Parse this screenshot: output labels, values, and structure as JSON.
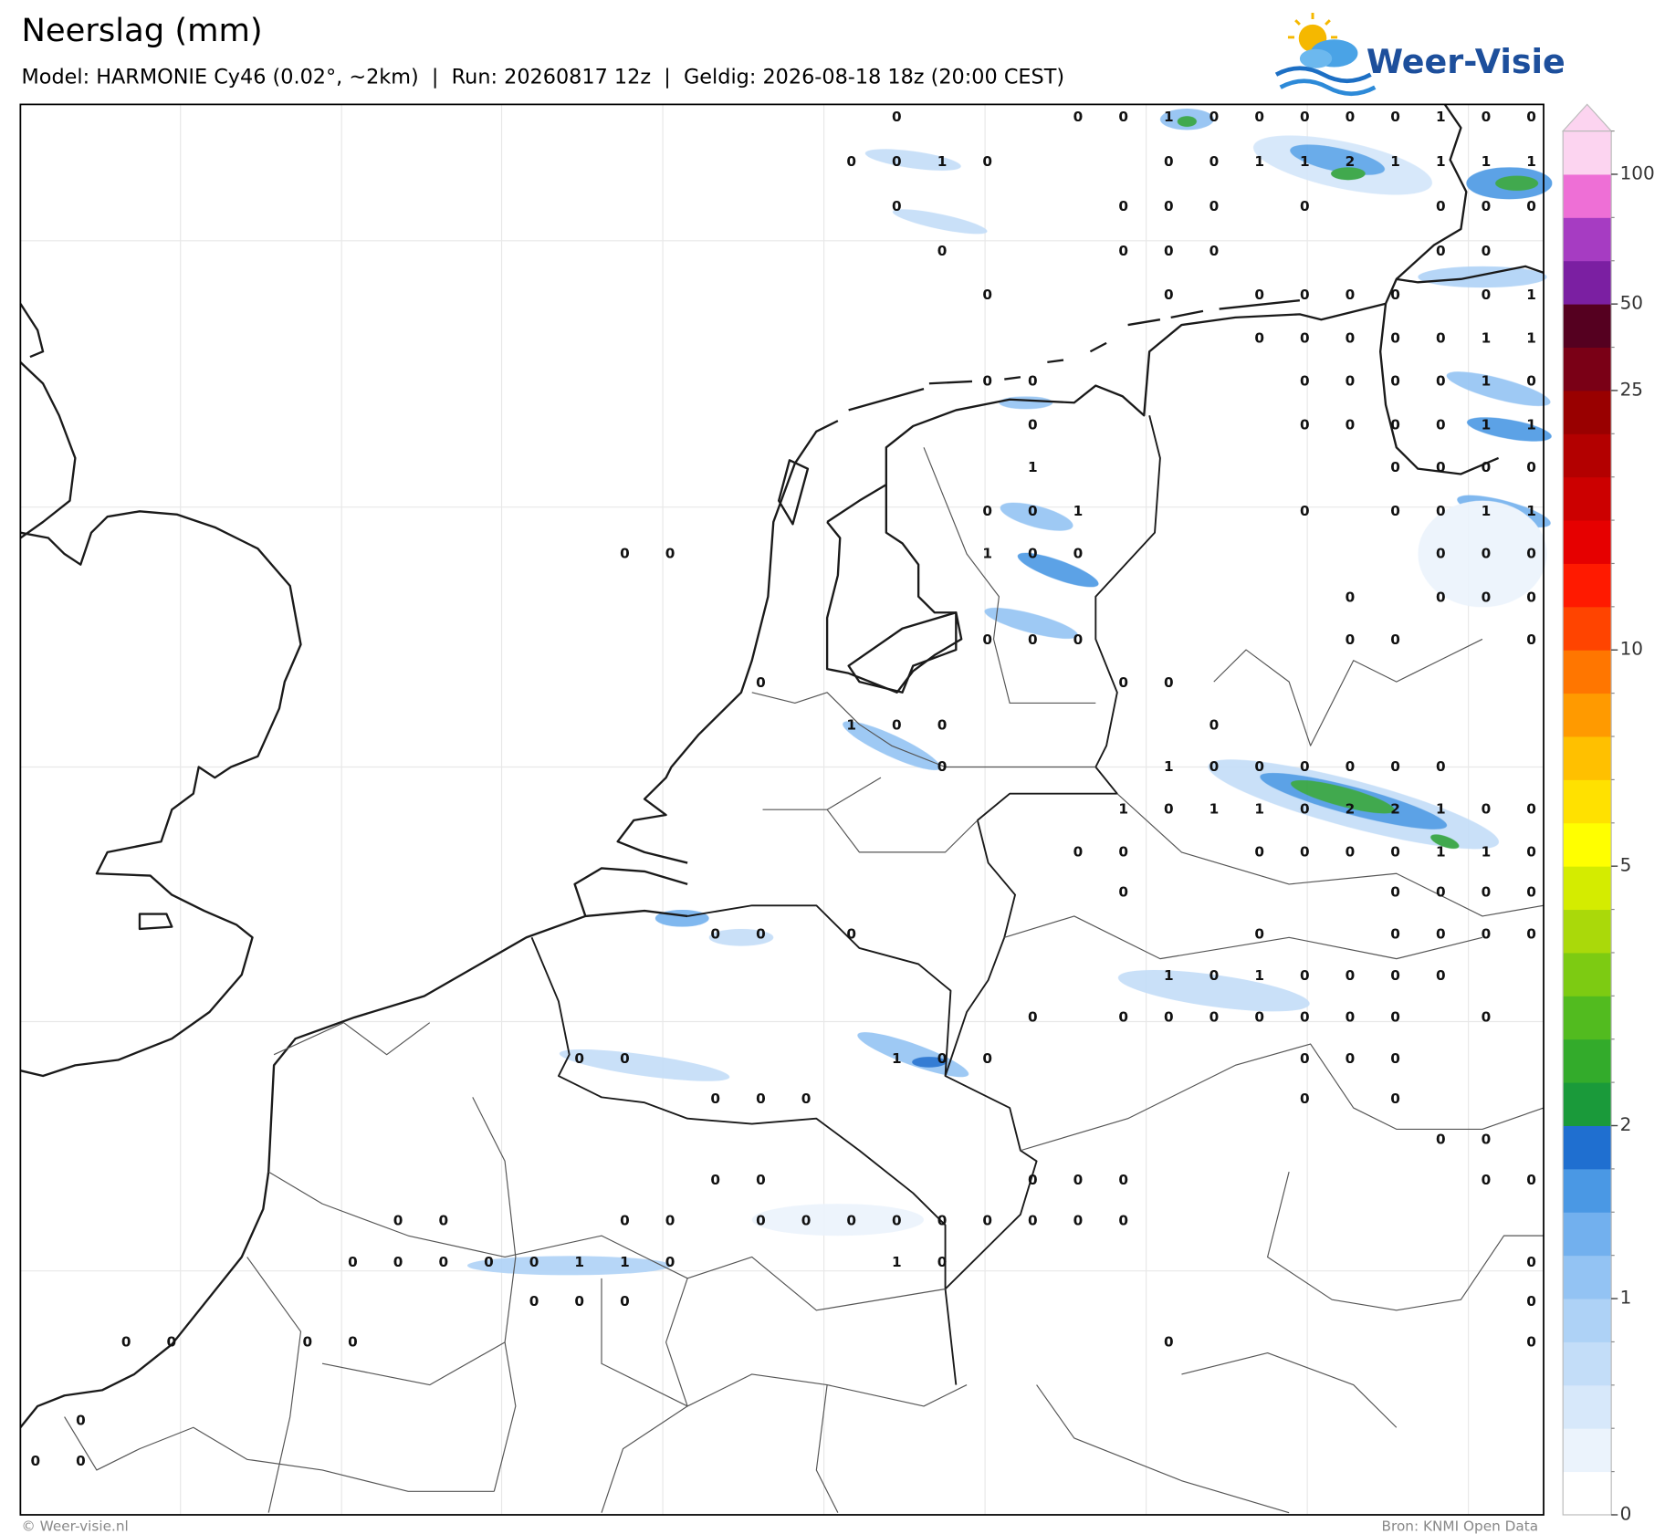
{
  "header": {
    "title": "Neerslag (mm)",
    "subtitle": "Model: HARMONIE Cy46 (0.02°, ~2km)  |  Run: 20260817 12z  |  Geldig: 2026-08-18 18z (20:00 CEST)",
    "logo": "Weer-Visie"
  },
  "map": {
    "rows": [
      [
        null,
        null,
        null,
        null,
        null,
        null,
        null,
        null,
        null,
        null,
        null,
        null,
        null,
        null,
        null,
        null,
        null,
        null,
        null,
        0,
        null,
        null,
        null,
        0,
        0,
        1,
        0,
        0,
        0,
        0,
        0,
        1,
        0,
        0
      ],
      [
        null,
        null,
        null,
        null,
        null,
        null,
        null,
        null,
        null,
        null,
        null,
        null,
        null,
        null,
        null,
        null,
        null,
        null,
        0,
        0,
        1,
        0,
        null,
        null,
        null,
        0,
        0,
        1,
        1,
        2,
        1,
        1,
        1,
        1
      ],
      [
        null,
        null,
        null,
        null,
        null,
        null,
        null,
        null,
        null,
        null,
        null,
        null,
        null,
        null,
        null,
        null,
        null,
        null,
        null,
        0,
        null,
        null,
        null,
        null,
        0,
        0,
        0,
        null,
        0,
        null,
        null,
        0,
        0,
        0
      ],
      [
        null,
        null,
        null,
        null,
        null,
        null,
        null,
        null,
        null,
        null,
        null,
        null,
        null,
        null,
        null,
        null,
        null,
        null,
        null,
        null,
        0,
        null,
        null,
        null,
        0,
        0,
        0,
        null,
        null,
        null,
        null,
        0,
        0,
        null
      ],
      [
        null,
        null,
        null,
        null,
        null,
        null,
        null,
        null,
        null,
        null,
        null,
        null,
        null,
        null,
        null,
        null,
        null,
        null,
        null,
        null,
        null,
        0,
        null,
        null,
        null,
        0,
        null,
        0,
        0,
        0,
        0,
        null,
        0,
        1
      ],
      [
        null,
        null,
        null,
        null,
        null,
        null,
        null,
        null,
        null,
        null,
        null,
        null,
        null,
        null,
        null,
        null,
        null,
        null,
        null,
        null,
        null,
        null,
        null,
        null,
        null,
        null,
        null,
        0,
        0,
        0,
        0,
        0,
        1,
        1
      ],
      [
        null,
        null,
        null,
        null,
        null,
        null,
        null,
        null,
        null,
        null,
        null,
        null,
        null,
        null,
        null,
        null,
        null,
        null,
        null,
        null,
        null,
        0,
        0,
        null,
        null,
        null,
        null,
        null,
        0,
        0,
        0,
        0,
        1,
        0
      ],
      [
        null,
        null,
        null,
        null,
        null,
        null,
        null,
        null,
        null,
        null,
        null,
        null,
        null,
        null,
        null,
        null,
        null,
        null,
        null,
        null,
        null,
        null,
        0,
        null,
        null,
        null,
        null,
        null,
        0,
        0,
        0,
        0,
        1,
        1
      ],
      [
        null,
        null,
        null,
        null,
        null,
        null,
        null,
        null,
        null,
        null,
        null,
        null,
        null,
        null,
        null,
        null,
        null,
        null,
        null,
        null,
        null,
        null,
        1,
        null,
        null,
        null,
        null,
        null,
        null,
        null,
        0,
        0,
        0,
        0
      ],
      [
        null,
        null,
        null,
        null,
        null,
        null,
        null,
        null,
        null,
        null,
        null,
        null,
        null,
        null,
        null,
        null,
        null,
        null,
        null,
        null,
        null,
        0,
        0,
        1,
        null,
        null,
        null,
        null,
        0,
        null,
        0,
        0,
        1,
        1
      ],
      [
        null,
        null,
        null,
        null,
        null,
        null,
        null,
        null,
        null,
        null,
        null,
        null,
        null,
        0,
        0,
        null,
        null,
        null,
        null,
        null,
        null,
        1,
        0,
        0,
        null,
        null,
        null,
        null,
        null,
        null,
        null,
        0,
        0,
        0
      ],
      [
        null,
        null,
        null,
        null,
        null,
        null,
        null,
        null,
        null,
        null,
        null,
        null,
        null,
        null,
        null,
        null,
        null,
        null,
        null,
        null,
        null,
        null,
        null,
        null,
        null,
        null,
        null,
        null,
        null,
        0,
        null,
        0,
        0,
        0
      ],
      [
        null,
        null,
        null,
        null,
        null,
        null,
        null,
        null,
        null,
        null,
        null,
        null,
        null,
        null,
        null,
        null,
        null,
        null,
        null,
        null,
        null,
        0,
        0,
        0,
        null,
        null,
        null,
        null,
        null,
        0,
        0,
        null,
        null,
        0
      ],
      [
        null,
        null,
        null,
        null,
        null,
        null,
        null,
        null,
        null,
        null,
        null,
        null,
        null,
        null,
        null,
        null,
        0,
        null,
        null,
        null,
        null,
        null,
        null,
        null,
        0,
        0,
        null,
        null,
        null,
        null,
        null,
        null,
        null,
        null
      ],
      [
        null,
        null,
        null,
        null,
        null,
        null,
        null,
        null,
        null,
        null,
        null,
        null,
        null,
        null,
        null,
        null,
        null,
        null,
        1,
        0,
        0,
        null,
        null,
        null,
        null,
        null,
        0,
        null,
        null,
        null,
        null,
        null,
        null,
        null
      ],
      [
        null,
        null,
        null,
        null,
        null,
        null,
        null,
        null,
        null,
        null,
        null,
        null,
        null,
        null,
        null,
        null,
        null,
        null,
        null,
        null,
        0,
        null,
        null,
        null,
        null,
        1,
        0,
        0,
        0,
        0,
        0,
        0,
        null,
        null
      ],
      [
        null,
        null,
        null,
        null,
        null,
        null,
        null,
        null,
        null,
        null,
        null,
        null,
        null,
        null,
        null,
        null,
        null,
        null,
        null,
        null,
        null,
        null,
        null,
        null,
        1,
        0,
        1,
        1,
        0,
        2,
        2,
        1,
        0,
        0
      ],
      [
        null,
        null,
        null,
        null,
        null,
        null,
        null,
        null,
        null,
        null,
        null,
        null,
        null,
        null,
        null,
        null,
        null,
        null,
        null,
        null,
        null,
        null,
        null,
        0,
        0,
        null,
        null,
        0,
        0,
        0,
        0,
        1,
        1,
        0
      ],
      [
        null,
        null,
        null,
        null,
        null,
        null,
        null,
        null,
        null,
        null,
        null,
        null,
        null,
        null,
        null,
        null,
        null,
        null,
        null,
        null,
        null,
        null,
        null,
        null,
        0,
        null,
        null,
        null,
        null,
        null,
        0,
        0,
        0,
        0
      ],
      [
        null,
        null,
        null,
        null,
        null,
        null,
        null,
        null,
        null,
        null,
        null,
        null,
        null,
        null,
        null,
        0,
        0,
        null,
        0,
        null,
        null,
        null,
        null,
        null,
        null,
        null,
        null,
        0,
        null,
        null,
        0,
        0,
        0,
        0
      ],
      [
        null,
        null,
        null,
        null,
        null,
        null,
        null,
        null,
        null,
        null,
        null,
        null,
        null,
        null,
        null,
        null,
        null,
        null,
        null,
        null,
        null,
        null,
        null,
        null,
        null,
        1,
        0,
        1,
        0,
        0,
        0,
        0,
        null,
        null
      ],
      [
        null,
        null,
        null,
        null,
        null,
        null,
        null,
        null,
        null,
        null,
        null,
        null,
        null,
        null,
        null,
        null,
        null,
        null,
        null,
        null,
        null,
        null,
        0,
        null,
        0,
        0,
        0,
        0,
        0,
        0,
        0,
        null,
        0,
        null
      ],
      [
        null,
        null,
        null,
        null,
        null,
        null,
        null,
        null,
        null,
        null,
        null,
        null,
        0,
        0,
        null,
        null,
        null,
        null,
        null,
        1,
        0,
        0,
        null,
        null,
        null,
        null,
        null,
        null,
        0,
        0,
        0,
        null,
        null,
        null
      ],
      [
        null,
        null,
        null,
        null,
        null,
        null,
        null,
        null,
        null,
        null,
        null,
        null,
        null,
        null,
        null,
        0,
        0,
        0,
        null,
        null,
        null,
        null,
        null,
        null,
        null,
        null,
        null,
        null,
        0,
        null,
        0,
        null,
        null,
        null
      ],
      [
        null,
        null,
        null,
        null,
        null,
        null,
        null,
        null,
        null,
        null,
        null,
        null,
        null,
        null,
        null,
        null,
        null,
        null,
        null,
        null,
        null,
        null,
        null,
        null,
        null,
        null,
        null,
        null,
        null,
        null,
        null,
        0,
        0,
        null
      ],
      [
        null,
        null,
        null,
        null,
        null,
        null,
        null,
        null,
        null,
        null,
        null,
        null,
        null,
        null,
        null,
        0,
        0,
        null,
        null,
        null,
        null,
        null,
        0,
        0,
        0,
        null,
        null,
        null,
        null,
        null,
        null,
        null,
        0,
        0
      ],
      [
        null,
        null,
        null,
        null,
        null,
        null,
        null,
        null,
        0,
        0,
        null,
        null,
        null,
        0,
        0,
        null,
        0,
        0,
        0,
        0,
        0,
        0,
        0,
        0,
        0,
        null,
        null,
        null,
        null,
        null,
        null,
        null,
        null,
        null
      ],
      [
        null,
        null,
        null,
        null,
        null,
        null,
        null,
        0,
        0,
        0,
        0,
        0,
        1,
        1,
        0,
        null,
        null,
        null,
        null,
        1,
        0,
        null,
        null,
        null,
        null,
        null,
        null,
        null,
        null,
        null,
        null,
        null,
        null,
        0
      ],
      [
        null,
        null,
        null,
        null,
        null,
        null,
        null,
        null,
        null,
        null,
        null,
        0,
        0,
        0,
        null,
        null,
        null,
        null,
        null,
        null,
        null,
        null,
        null,
        null,
        null,
        null,
        null,
        null,
        null,
        null,
        null,
        null,
        null,
        0
      ],
      [
        null,
        null,
        0,
        0,
        null,
        null,
        0,
        0,
        null,
        null,
        null,
        null,
        null,
        null,
        null,
        null,
        null,
        null,
        null,
        null,
        null,
        null,
        null,
        null,
        null,
        0,
        null,
        null,
        null,
        null,
        null,
        null,
        null,
        0
      ],
      [
        null,
        0,
        null,
        null,
        null,
        null,
        null,
        null,
        null,
        null,
        null,
        null,
        null,
        null,
        null,
        null,
        null,
        null,
        null,
        null,
        null,
        null,
        null,
        null,
        null,
        null,
        null,
        null,
        null,
        null,
        null,
        null,
        null,
        null
      ],
      [
        0,
        0,
        null,
        null,
        null,
        null,
        null,
        null,
        null,
        null,
        null,
        null,
        null,
        null,
        null,
        null,
        null,
        null,
        null,
        null,
        null,
        null,
        null,
        null,
        null,
        null,
        null,
        null,
        null,
        null,
        null,
        null,
        null,
        null
      ]
    ]
  },
  "colorbar": {
    "levels": [
      0,
      0.2,
      0.4,
      0.6,
      0.8,
      1,
      1.25,
      1.5,
      1.75,
      2,
      2.5,
      3,
      3.5,
      4,
      4.5,
      5,
      6,
      7,
      8,
      9,
      10,
      12.5,
      15,
      17.5,
      20,
      22.5,
      25,
      37.5,
      50,
      65,
      80,
      100,
      150
    ],
    "colors": [
      "#ffffff",
      "#ebf3fc",
      "#d7e8fa",
      "#c3ddf8",
      "#aed2f6",
      "#93c3f3",
      "#72b0ee",
      "#4a98e4",
      "#1f6fd0",
      "#1a9a3a",
      "#33ab2b",
      "#52bb1f",
      "#7dcb12",
      "#aad90a",
      "#d4ec00",
      "#ffff00",
      "#ffe100",
      "#ffc000",
      "#ff9a00",
      "#ff7600",
      "#ff4400",
      "#ff1a00",
      "#e60000",
      "#cc0000",
      "#b30000",
      "#990000",
      "#7a0016",
      "#550020",
      "#7b1fa2",
      "#a63cc2",
      "#ee6fd6",
      "#fcd4f0"
    ],
    "ticks": [
      0,
      1,
      2,
      5,
      10,
      25,
      50,
      100
    ]
  },
  "footer": {
    "copyright": "© Weer-visie.nl",
    "source": "Bron: KNMI Open Data"
  }
}
